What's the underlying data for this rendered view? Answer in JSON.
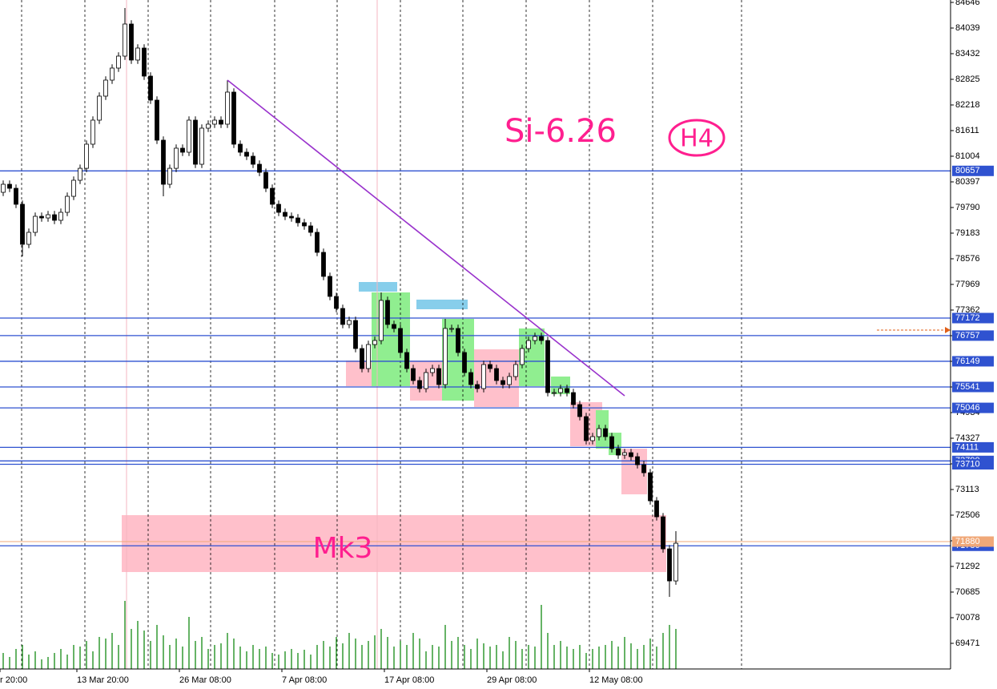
{
  "chart_data": {
    "type": "candlestick",
    "annotations": [
      "Si-6.26",
      "H4",
      "Mk3"
    ],
    "categories": [
      "r 20:00",
      null,
      null,
      null,
      null,
      null,
      null,
      null,
      null,
      null,
      null,
      null,
      "13 Mar 20:00",
      null,
      null,
      null,
      null,
      null,
      null,
      null,
      null,
      null,
      null,
      null,
      null,
      null,
      null,
      null,
      "26 Mar 08:00",
      null,
      null,
      null,
      null,
      null,
      null,
      null,
      null,
      null,
      null,
      null,
      null,
      null,
      null,
      null,
      "7 Apr 08:00",
      null,
      null,
      null,
      null,
      null,
      null,
      null,
      null,
      null,
      null,
      null,
      null,
      null,
      null,
      null,
      "17 Apr 08:00",
      null,
      null,
      null,
      null,
      null,
      null,
      null,
      null,
      null,
      null,
      null,
      null,
      null,
      null,
      null,
      "29 Apr 08:00",
      null,
      null,
      null,
      null,
      null,
      null,
      null,
      null,
      null,
      null,
      null,
      null,
      null,
      null,
      null,
      "12 May 08:00",
      null,
      null,
      null,
      null,
      null,
      null,
      null,
      null,
      null,
      null,
      null,
      null,
      null
    ],
    "open": [
      80150,
      80340,
      80245,
      79866,
      78918,
      79202,
      79581,
      79543,
      79619,
      79487,
      79676,
      80055,
      80435,
      80718,
      81289,
      81858,
      82427,
      82806,
      83091,
      83375,
      84134,
      83281,
      83565,
      82901,
      82332,
      81384,
      80340,
      80718,
      81194,
      81099,
      81858,
      80814,
      81668,
      81763,
      81858,
      81763,
      82522,
      81289,
      81099,
      81004,
      80814,
      80623,
      80245,
      79866,
      79676,
      79581,
      79543,
      79430,
      79354,
      79202,
      78728,
      78159,
      77685,
      77400,
      77021,
      77115,
      76451,
      75977,
      76546,
      76641,
      77590,
      77021,
      76926,
      76357,
      75977,
      75693,
      75503,
      75882,
      75977,
      75598,
      76926,
      76926,
      76357,
      75882,
      75598,
      75503,
      76072,
      75977,
      75693,
      75598,
      75788,
      76072,
      76451,
      76641,
      76736,
      76641,
      75408,
      75408,
      75503,
      75408,
      75124,
      74839,
      74270,
      74365,
      74554,
      74365,
      74080,
      73928,
      73985,
      73890,
      73700,
      73510,
      72846,
      72467,
      71708,
      70949
    ],
    "high": [
      80430,
      80430,
      80335,
      79956,
      79292,
      79671,
      79671,
      79709,
      79709,
      79766,
      80145,
      80525,
      80808,
      81379,
      81948,
      82517,
      82896,
      83181,
      83465,
      84513,
      84224,
      83655,
      83655,
      82991,
      82422,
      81474,
      80808,
      81284,
      81284,
      81948,
      81948,
      81758,
      81853,
      81948,
      81948,
      82806,
      82612,
      81379,
      81189,
      81094,
      80904,
      80713,
      80335,
      79956,
      79766,
      79671,
      79633,
      79520,
      79444,
      79292,
      78818,
      78249,
      77775,
      77490,
      77205,
      77205,
      76541,
      76636,
      76731,
      77780,
      77680,
      77111,
      77016,
      76447,
      76067,
      75783,
      75972,
      76067,
      76067,
      77154,
      77016,
      77016,
      76447,
      75972,
      75688,
      76162,
      76162,
      76067,
      75783,
      75878,
      76162,
      76541,
      76731,
      76826,
      76826,
      76731,
      75498,
      75593,
      75593,
      75498,
      75214,
      74929,
      74455,
      74644,
      74644,
      74455,
      74170,
      74075,
      74075,
      73980,
      73790,
      73600,
      72936,
      72557,
      71798,
      72127
    ],
    "low": [
      80060,
      80155,
      79776,
      78634,
      78828,
      79112,
      79453,
      79453,
      79397,
      79397,
      79586,
      79965,
      80345,
      80628,
      81199,
      81768,
      82337,
      82716,
      83001,
      83285,
      83191,
      83191,
      82811,
      82242,
      81294,
      80055,
      80250,
      80628,
      81009,
      81009,
      80724,
      80724,
      81578,
      81673,
      81673,
      81673,
      81199,
      81009,
      80914,
      80724,
      80533,
      80155,
      79776,
      79586,
      79491,
      79453,
      79340,
      79264,
      79112,
      78638,
      78069,
      77595,
      77310,
      76931,
      76931,
      76361,
      75887,
      75887,
      76456,
      76551,
      76931,
      76836,
      76267,
      75887,
      75603,
      75413,
      75413,
      75792,
      75508,
      75508,
      76836,
      76267,
      75792,
      75508,
      75413,
      75413,
      75887,
      75603,
      75508,
      75508,
      75698,
      75982,
      76361,
      76551,
      76551,
      75318,
      75318,
      75318,
      75318,
      75034,
      74749,
      74180,
      74180,
      74275,
      74275,
      73990,
      73838,
      73838,
      73800,
      73610,
      73420,
      72756,
      72377,
      71618,
      70572,
      70859
    ],
    "close": [
      80340,
      80245,
      79866,
      78918,
      79202,
      79581,
      79543,
      79619,
      79487,
      79676,
      80055,
      80435,
      80718,
      81289,
      81858,
      82427,
      82806,
      83091,
      83375,
      84134,
      83281,
      83565,
      82901,
      82332,
      81384,
      80340,
      80718,
      81194,
      81099,
      81858,
      80814,
      81668,
      81763,
      81858,
      81763,
      82522,
      81289,
      81099,
      81004,
      80814,
      80623,
      80245,
      79866,
      79676,
      79581,
      79543,
      79430,
      79354,
      79202,
      78728,
      78159,
      77685,
      77400,
      77021,
      77115,
      76451,
      75977,
      76546,
      76641,
      77590,
      77021,
      76926,
      76357,
      75977,
      75693,
      75503,
      75882,
      75977,
      75598,
      76926,
      76926,
      76357,
      75882,
      75598,
      75503,
      76072,
      75977,
      75693,
      75598,
      75788,
      76072,
      76451,
      76641,
      76736,
      76641,
      75408,
      75408,
      75503,
      75408,
      75124,
      74839,
      74270,
      74365,
      74554,
      74365,
      74080,
      73928,
      73985,
      73890,
      73700,
      73510,
      72846,
      72467,
      71708,
      70949,
      71841
    ],
    "volume": [
      20,
      15,
      25,
      30,
      18,
      22,
      12,
      15,
      20,
      25,
      18,
      30,
      28,
      35,
      22,
      40,
      38,
      45,
      30,
      85,
      50,
      60,
      48,
      35,
      55,
      42,
      30,
      38,
      28,
      65,
      35,
      40,
      25,
      30,
      32,
      45,
      38,
      28,
      22,
      30,
      25,
      28,
      20,
      18,
      22,
      25,
      20,
      24,
      18,
      30,
      35,
      28,
      40,
      32,
      45,
      38,
      30,
      35,
      42,
      50,
      40,
      28,
      35,
      30,
      45,
      38,
      22,
      30,
      28,
      55,
      35,
      40,
      30,
      25,
      38,
      32,
      28,
      30,
      22,
      40,
      35,
      25,
      30,
      28,
      80,
      45,
      30,
      35,
      28,
      25,
      30,
      20,
      25,
      28,
      30,
      35,
      28,
      40,
      32,
      25,
      30,
      38,
      28,
      45,
      55,
      50
    ],
    "up_color": "#ffffff",
    "down_color": "#000000",
    "volume_color": "#008000",
    "ylim": [
      68864,
      84703
    ],
    "yticks": [
      84646,
      84039,
      83432,
      82825,
      82218,
      81611,
      81004,
      80397,
      79790,
      79183,
      78576,
      77969,
      77362,
      76755,
      76148,
      75541,
      74934,
      74327,
      73720,
      73113,
      72506,
      71899,
      71292,
      70685,
      70078,
      69471
    ],
    "levels": [
      80657,
      77172,
      76757,
      76149,
      75541,
      75046,
      74111,
      73790,
      73710,
      71780
    ],
    "level_color": "#2f52d0",
    "current_price": 71880,
    "current_color": "#f0a878",
    "trendline": {
      "from": 35,
      "to": 97,
      "from_price": 82806,
      "to_price": 75332,
      "color": "#9932cc"
    },
    "zones": [
      {
        "start": 19,
        "end": 103,
        "top": 72506,
        "bottom": 71159,
        "color": "#ffc0cb"
      },
      {
        "start": 54,
        "end": 57,
        "top": 76167,
        "bottom": 75560,
        "color": "#ffc0cb"
      },
      {
        "start": 58,
        "end": 63,
        "top": 77780,
        "bottom": 75560,
        "color": "#90ee90"
      },
      {
        "start": 56,
        "end": 61,
        "top": 78026,
        "bottom": 77799,
        "color": "#87ceeb"
      },
      {
        "start": 64,
        "end": 68,
        "top": 76167,
        "bottom": 75218,
        "color": "#ffc0cb"
      },
      {
        "start": 69,
        "end": 73,
        "top": 77154,
        "bottom": 75218,
        "color": "#90ee90"
      },
      {
        "start": 65,
        "end": 72,
        "top": 77609,
        "bottom": 77381,
        "color": "#87ceeb"
      },
      {
        "start": 74,
        "end": 80,
        "top": 76432,
        "bottom": 75067,
        "color": "#ffc0cb"
      },
      {
        "start": 81,
        "end": 84,
        "top": 76926,
        "bottom": 75560,
        "color": "#90ee90"
      },
      {
        "start": 86,
        "end": 88,
        "top": 75788,
        "bottom": 75370,
        "color": "#90ee90"
      },
      {
        "start": 89,
        "end": 93,
        "top": 75181,
        "bottom": 74137,
        "color": "#ffc0cb"
      },
      {
        "start": 93,
        "end": 94,
        "top": 74991,
        "bottom": 74080,
        "color": "#90ee90"
      },
      {
        "start": 95,
        "end": 96,
        "top": 74459,
        "bottom": 73928,
        "color": "#90ee90"
      },
      {
        "start": 97,
        "end": 100,
        "top": 74080,
        "bottom": 72999,
        "color": "#ffc0cb"
      }
    ]
  }
}
